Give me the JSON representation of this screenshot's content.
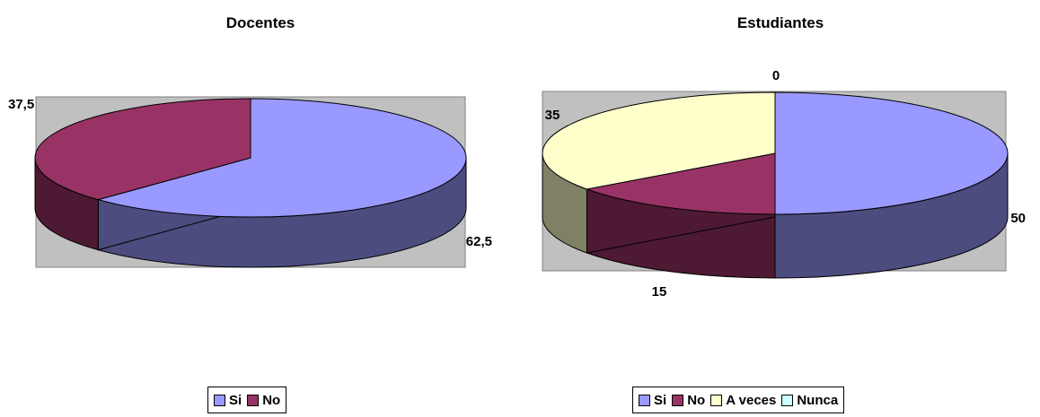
{
  "chart_data": [
    {
      "type": "pie",
      "title": "Docentes",
      "categories": [
        "Si",
        "No"
      ],
      "values": [
        62.5,
        37.5
      ],
      "data_labels": [
        "62,5",
        "37,5"
      ],
      "colors": [
        "#9999ff",
        "#993366"
      ],
      "side_colors": [
        "#4c4c7f",
        "#4d1933"
      ],
      "legend": [
        "Si",
        "No"
      ],
      "legend_position": "bottom",
      "plot_area_color": "#c0c0c0"
    },
    {
      "type": "pie",
      "title": "Estudiantes",
      "categories": [
        "Si",
        "No",
        "A veces",
        "Nunca"
      ],
      "values": [
        50,
        15,
        35,
        0
      ],
      "data_labels": [
        "50",
        "15",
        "35",
        "0"
      ],
      "colors": [
        "#9999ff",
        "#993366",
        "#ffffcc",
        "#ccffff"
      ],
      "side_colors": [
        "#4c4c7f",
        "#4d1933",
        "#808066",
        "#668080"
      ],
      "legend": [
        "Si",
        "No",
        "A veces",
        "Nunca"
      ],
      "legend_position": "bottom",
      "plot_area_color": "#c0c0c0"
    }
  ]
}
